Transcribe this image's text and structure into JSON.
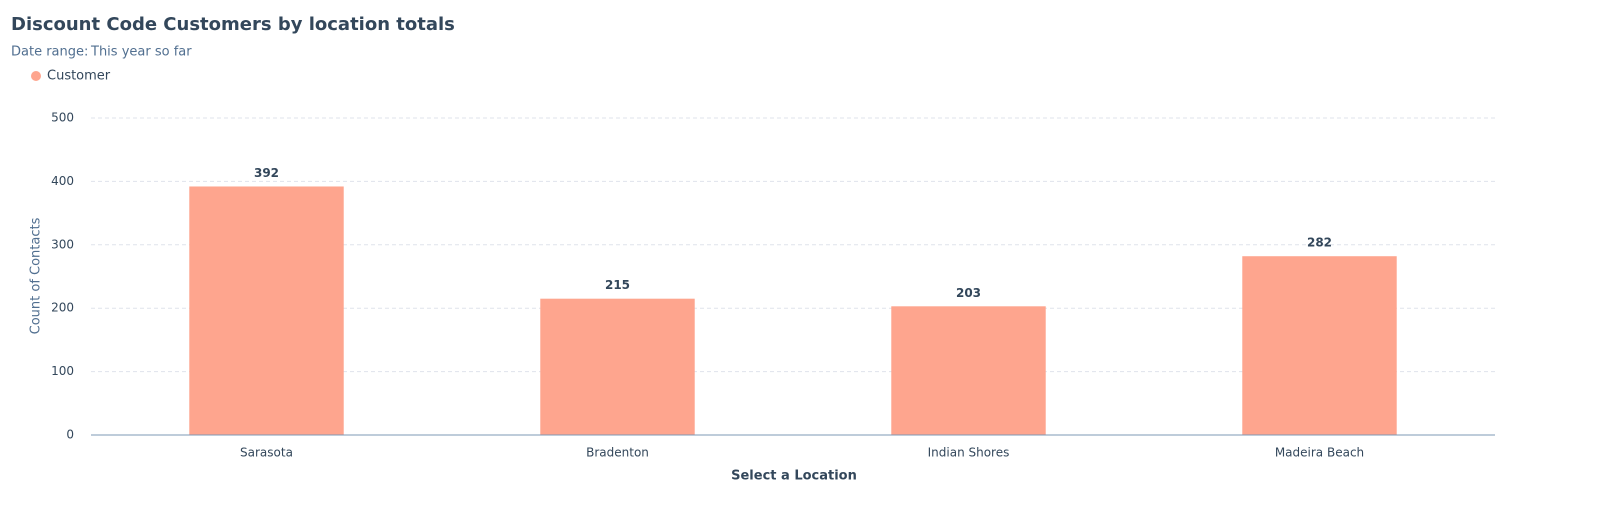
{
  "chart_data": {
    "type": "bar",
    "title": "Discount Code Customers by location totals",
    "subtitle_label": "Date range:",
    "subtitle_value": "This year so far",
    "x_label": "Select a Location",
    "y_label": "Count of Contacts",
    "categories": [
      "Sarasota",
      "Bradenton",
      "Indian Shores",
      "Madeira Beach"
    ],
    "series": [
      {
        "name": "Customer",
        "color": "#fea58e",
        "values": [
          392,
          215,
          203,
          282
        ]
      }
    ],
    "ylim": [
      0,
      500
    ],
    "yticks": [
      0,
      100,
      200,
      300,
      400,
      500
    ],
    "grid": true,
    "legend": "top-left"
  }
}
